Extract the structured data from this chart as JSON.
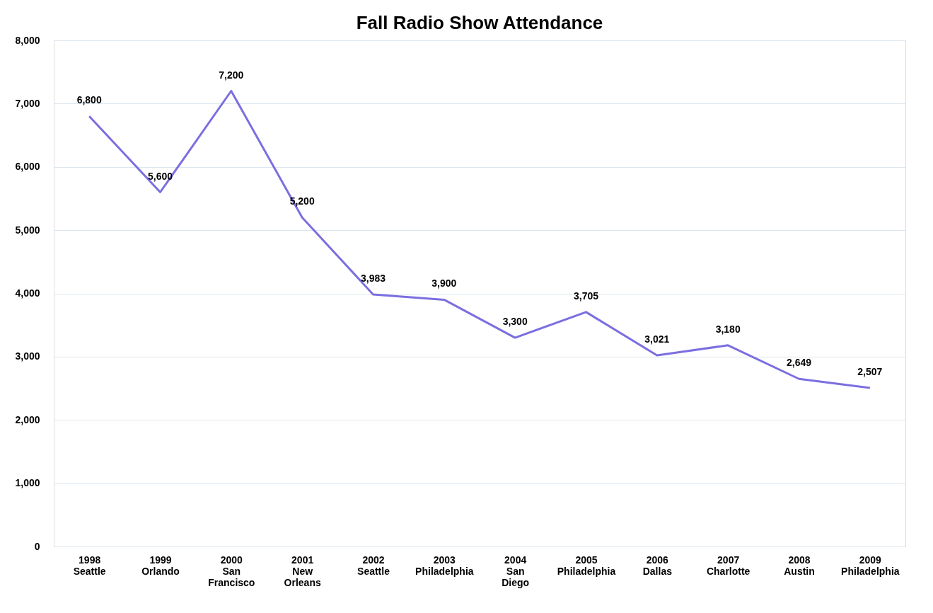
{
  "chart_data": {
    "type": "line",
    "title": "Fall Radio Show Attendance",
    "categories": [
      "1998\nSeattle",
      "1999\nOrlando",
      "2000\nSan\nFrancisco",
      "2001\nNew\nOrleans",
      "2002\nSeattle",
      "2003\nPhiladelphia",
      "2004\nSan\nDiego",
      "2005\nPhiladelphia",
      "2006\nDallas",
      "2007\nCharlotte",
      "2008\nAustin",
      "2009\nPhiladelphia"
    ],
    "series": [
      {
        "color": "#7b6fe0",
        "values": [
          6800,
          5600,
          7200,
          5200,
          3983,
          3900,
          3300,
          3705,
          3021,
          3180,
          2649,
          2507
        ]
      }
    ],
    "value_labels": [
      "6,800",
      "5,600",
      "7,200",
      "5,200",
      "3,983",
      "3,900",
      "3,300",
      "3,705",
      "3,021",
      "3,180",
      "2,649",
      "2,507"
    ],
    "ylim": [
      0,
      8000
    ],
    "yticks": [
      0,
      {
        "value": 1000,
        "label": "1,000"
      },
      {
        "value": 2000,
        "label": "2,000"
      },
      {
        "value": 3000,
        "label": "3,000"
      },
      {
        "value": 4000,
        "label": "4,000"
      },
      {
        "value": 5000,
        "label": "5,000"
      },
      {
        "value": 6000,
        "label": "6,000"
      },
      {
        "value": 7000,
        "label": "7,000"
      },
      {
        "value": 8000,
        "label": "8,000"
      }
    ],
    "grid": "y",
    "marker": "none",
    "line_style": "solid",
    "legend": false
  }
}
